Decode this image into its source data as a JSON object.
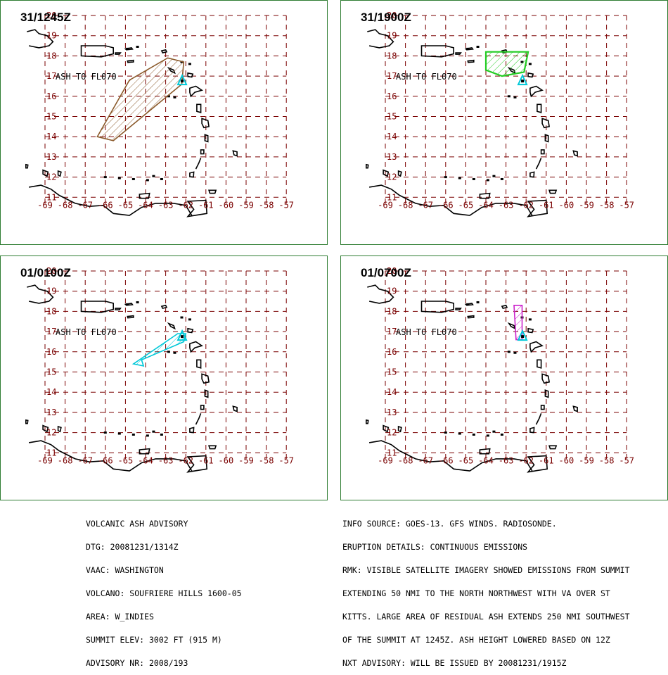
{
  "map": {
    "lat_ticks": [
      20,
      19,
      18,
      17,
      16,
      15,
      14,
      13,
      12,
      11
    ],
    "lon_ticks": [
      -69,
      -68,
      -67,
      -66,
      -65,
      -64,
      -63,
      -62,
      -61,
      -60,
      -59,
      -58,
      -57
    ],
    "label": "ASH TO FL070",
    "colors": {
      "grid": "#7a0000",
      "coast": "#000000",
      "volcano": "#00c8d8"
    }
  },
  "panels": [
    {
      "title": "31/1245Z",
      "color": "#8b5a2b",
      "show_label": true,
      "polygon": [
        [
          -62.1,
          17.7
        ],
        [
          -62.9,
          17.9
        ],
        [
          -64.8,
          16.8
        ],
        [
          -66.4,
          14.0
        ],
        [
          -65.6,
          13.8
        ],
        [
          -62.2,
          16.6
        ]
      ]
    },
    {
      "title": "31/1900Z",
      "color": "#22cc22",
      "show_label": true,
      "polygon": [
        [
          -64.0,
          18.2
        ],
        [
          -61.9,
          18.2
        ],
        [
          -62.1,
          17.2
        ],
        [
          -63.2,
          17.0
        ],
        [
          -64.0,
          17.3
        ]
      ]
    },
    {
      "title": "01/0100Z",
      "color": "#00c8d8",
      "show_label": true,
      "polygon": [
        [
          -62.0,
          16.9
        ],
        [
          -62.1,
          16.5
        ],
        [
          -64.2,
          15.6
        ],
        [
          -64.1,
          15.3
        ],
        [
          -64.6,
          15.4
        ],
        [
          -62.4,
          16.9
        ]
      ]
    },
    {
      "title": "01/0700Z",
      "color": "#cc22cc",
      "show_label": true,
      "polygon": [
        [
          -62.6,
          18.3
        ],
        [
          -62.2,
          18.3
        ],
        [
          -62.2,
          16.6
        ],
        [
          -62.5,
          16.6
        ]
      ]
    }
  ],
  "advisory": [
    "VOLCANIC ASH ADVISORY",
    "DTG: 20081231/1314Z",
    "VAAC: WASHINGTON",
    "VOLCANO: SOUFRIERE HILLS 1600-05",
    "AREA: W_INDIES",
    "SUMMIT ELEV: 3002 FT (915 M)",
    "ADVISORY NR: 2008/193"
  ],
  "remarks": [
    "INFO SOURCE: GOES-13. GFS WINDS. RADIOSONDE.",
    "ERUPTION DETAILS: CONTINUOUS EMISSIONS",
    "RMK: VISIBLE SATELLITE IMAGERY SHOWED EMISSIONS FROM SUMMIT",
    "EXTENDING 50 NMI TO THE NORTH NORTHWEST WITH VA OVER ST",
    "KITTS. LARGE AREA OF RESIDUAL ASH EXTENDS 250 NMI SOUTHWEST",
    "OF THE SUMMIT AT 1245Z. ASH HEIGHT LOWERED BASED ON 12Z",
    "NXT ADVISORY: WILL BE ISSUED BY 20081231/1915Z"
  ]
}
